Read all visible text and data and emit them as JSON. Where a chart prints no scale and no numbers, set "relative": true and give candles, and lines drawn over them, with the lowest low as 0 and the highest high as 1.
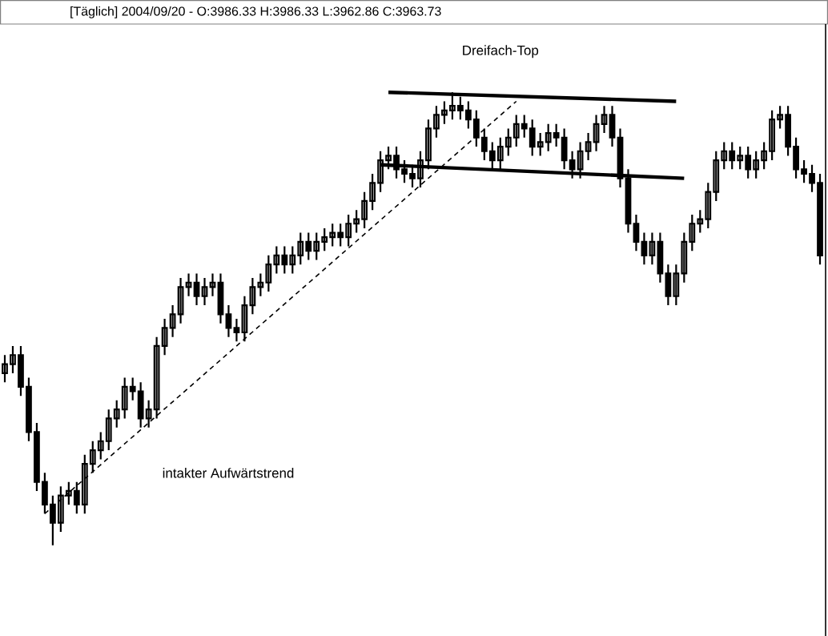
{
  "chart_data": {
    "type": "candlestick",
    "relative": true,
    "title": "[Täglich] 2004/09/20 - O:3986.33 H:3986.33 L:3962.86 C:3963.73",
    "annotations": [
      "Dreifach-Top",
      "intakter Aufwärtstrend"
    ],
    "color": "#000000",
    "categories": [
      null,
      null,
      null,
      null,
      null,
      null,
      null,
      null,
      null,
      null,
      null,
      null,
      null,
      null,
      null,
      null,
      null,
      null,
      null,
      null,
      null,
      null,
      null,
      null,
      null,
      null,
      null,
      null,
      null,
      null,
      null,
      null,
      null,
      null,
      null,
      null,
      null,
      null,
      null,
      null,
      null,
      null,
      null,
      null,
      null,
      null,
      null,
      null,
      null,
      null,
      null,
      null,
      null,
      null,
      null,
      null,
      null,
      null,
      null,
      null,
      null,
      null,
      null,
      null,
      null,
      null,
      null,
      null,
      null,
      null,
      null,
      null,
      null,
      null,
      null,
      null,
      null,
      null,
      null,
      null,
      null,
      null,
      null,
      null,
      null,
      null,
      null,
      null,
      null,
      null,
      null,
      null,
      null,
      null,
      null,
      null,
      null,
      null,
      null,
      null,
      null,
      null,
      null
    ],
    "ohlc": [
      [
        0.38,
        0.42,
        0.36,
        0.4
      ],
      [
        0.4,
        0.44,
        0.38,
        0.42
      ],
      [
        0.42,
        0.44,
        0.33,
        0.35
      ],
      [
        0.35,
        0.37,
        0.23,
        0.25
      ],
      [
        0.25,
        0.27,
        0.12,
        0.14
      ],
      [
        0.14,
        0.16,
        0.07,
        0.09
      ],
      [
        0.09,
        0.11,
        0,
        0.05
      ],
      [
        0.05,
        0.13,
        0.03,
        0.11
      ],
      [
        0.11,
        0.14,
        0.09,
        0.12
      ],
      [
        0.12,
        0.14,
        0.07,
        0.09
      ],
      [
        0.09,
        0.2,
        0.07,
        0.18
      ],
      [
        0.18,
        0.23,
        0.16,
        0.21
      ],
      [
        0.21,
        0.25,
        0.19,
        0.23
      ],
      [
        0.23,
        0.3,
        0.21,
        0.28
      ],
      [
        0.28,
        0.32,
        0.26,
        0.3
      ],
      [
        0.3,
        0.37,
        0.28,
        0.35
      ],
      [
        0.35,
        0.37,
        0.32,
        0.34
      ],
      [
        0.34,
        0.36,
        0.26,
        0.28
      ],
      [
        0.28,
        0.32,
        0.26,
        0.3
      ],
      [
        0.3,
        0.46,
        0.28,
        0.44
      ],
      [
        0.44,
        0.5,
        0.42,
        0.48
      ],
      [
        0.48,
        0.53,
        0.46,
        0.51
      ],
      [
        0.51,
        0.59,
        0.49,
        0.57
      ],
      [
        0.57,
        0.6,
        0.55,
        0.58
      ],
      [
        0.58,
        0.6,
        0.53,
        0.55
      ],
      [
        0.55,
        0.59,
        0.53,
        0.57
      ],
      [
        0.57,
        0.6,
        0.55,
        0.58
      ],
      [
        0.58,
        0.6,
        0.49,
        0.51
      ],
      [
        0.51,
        0.53,
        0.46,
        0.48
      ],
      [
        0.48,
        0.5,
        0.45,
        0.47
      ],
      [
        0.47,
        0.55,
        0.45,
        0.53
      ],
      [
        0.53,
        0.59,
        0.51,
        0.57
      ],
      [
        0.57,
        0.6,
        0.55,
        0.58
      ],
      [
        0.58,
        0.64,
        0.56,
        0.62
      ],
      [
        0.62,
        0.66,
        0.6,
        0.64
      ],
      [
        0.64,
        0.66,
        0.6,
        0.62
      ],
      [
        0.62,
        0.66,
        0.6,
        0.64
      ],
      [
        0.64,
        0.69,
        0.62,
        0.67
      ],
      [
        0.67,
        0.69,
        0.63,
        0.65
      ],
      [
        0.65,
        0.69,
        0.63,
        0.67
      ],
      [
        0.67,
        0.7,
        0.65,
        0.68
      ],
      [
        0.68,
        0.71,
        0.66,
        0.69
      ],
      [
        0.69,
        0.71,
        0.66,
        0.68
      ],
      [
        0.68,
        0.73,
        0.66,
        0.71
      ],
      [
        0.71,
        0.74,
        0.69,
        0.72
      ],
      [
        0.72,
        0.78,
        0.7,
        0.76
      ],
      [
        0.76,
        0.82,
        0.74,
        0.8
      ],
      [
        0.8,
        0.87,
        0.78,
        0.85
      ],
      [
        0.85,
        0.88,
        0.83,
        0.86
      ],
      [
        0.86,
        0.88,
        0.81,
        0.83
      ],
      [
        0.83,
        0.85,
        0.8,
        0.82
      ],
      [
        0.82,
        0.84,
        0.79,
        0.81
      ],
      [
        0.81,
        0.87,
        0.79,
        0.85
      ],
      [
        0.85,
        0.94,
        0.83,
        0.92
      ],
      [
        0.92,
        0.97,
        0.9,
        0.95
      ],
      [
        0.95,
        0.98,
        0.93,
        0.96
      ],
      [
        0.96,
        1,
        0.94,
        0.97
      ],
      [
        0.97,
        0.99,
        0.94,
        0.96
      ],
      [
        0.96,
        0.98,
        0.92,
        0.94
      ],
      [
        0.94,
        0.96,
        0.88,
        0.9
      ],
      [
        0.9,
        0.92,
        0.85,
        0.87
      ],
      [
        0.87,
        0.89,
        0.83,
        0.85
      ],
      [
        0.85,
        0.9,
        0.83,
        0.88
      ],
      [
        0.88,
        0.92,
        0.86,
        0.9
      ],
      [
        0.9,
        0.95,
        0.88,
        0.93
      ],
      [
        0.93,
        0.95,
        0.9,
        0.92
      ],
      [
        0.92,
        0.94,
        0.86,
        0.88
      ],
      [
        0.88,
        0.91,
        0.86,
        0.89
      ],
      [
        0.89,
        0.93,
        0.87,
        0.91
      ],
      [
        0.91,
        0.93,
        0.88,
        0.9
      ],
      [
        0.9,
        0.92,
        0.83,
        0.85
      ],
      [
        0.85,
        0.87,
        0.81,
        0.83
      ],
      [
        0.83,
        0.89,
        0.81,
        0.87
      ],
      [
        0.87,
        0.91,
        0.85,
        0.89
      ],
      [
        0.89,
        0.95,
        0.87,
        0.93
      ],
      [
        0.93,
        0.97,
        0.91,
        0.95
      ],
      [
        0.95,
        0.97,
        0.88,
        0.9
      ],
      [
        0.9,
        0.92,
        0.79,
        0.81
      ],
      [
        0.81,
        0.83,
        0.69,
        0.71
      ],
      [
        0.71,
        0.73,
        0.65,
        0.67
      ],
      [
        0.67,
        0.69,
        0.62,
        0.64
      ],
      [
        0.64,
        0.69,
        0.62,
        0.67
      ],
      [
        0.67,
        0.69,
        0.58,
        0.6
      ],
      [
        0.6,
        0.62,
        0.53,
        0.55
      ],
      [
        0.55,
        0.62,
        0.53,
        0.6
      ],
      [
        0.6,
        0.69,
        0.58,
        0.67
      ],
      [
        0.67,
        0.73,
        0.65,
        0.71
      ],
      [
        0.71,
        0.74,
        0.69,
        0.72
      ],
      [
        0.72,
        0.8,
        0.7,
        0.78
      ],
      [
        0.78,
        0.87,
        0.76,
        0.85
      ],
      [
        0.85,
        0.89,
        0.83,
        0.87
      ],
      [
        0.87,
        0.89,
        0.83,
        0.85
      ],
      [
        0.85,
        0.88,
        0.83,
        0.86
      ],
      [
        0.86,
        0.88,
        0.81,
        0.83
      ],
      [
        0.83,
        0.87,
        0.81,
        0.85
      ],
      [
        0.85,
        0.89,
        0.83,
        0.87
      ],
      [
        0.87,
        0.96,
        0.85,
        0.94
      ],
      [
        0.94,
        0.97,
        0.92,
        0.95
      ],
      [
        0.95,
        0.97,
        0.86,
        0.88
      ],
      [
        0.88,
        0.9,
        0.81,
        0.83
      ],
      [
        0.83,
        0.85,
        0.8,
        0.82
      ],
      [
        0.82,
        0.84,
        0.78,
        0.8
      ],
      [
        0.8,
        0.82,
        0.62,
        0.64
      ]
    ],
    "series": [
      {
        "type": "line",
        "values": [
          null,
          null,
          null,
          null,
          null,
          null,
          null,
          null,
          null,
          null,
          null,
          null,
          null,
          null,
          null,
          null,
          null,
          null,
          null,
          null,
          null,
          null,
          null,
          null,
          null,
          null,
          null,
          null,
          null,
          null,
          null,
          null,
          null,
          null,
          null,
          null,
          null,
          null,
          null,
          null,
          null,
          null,
          null,
          null,
          null,
          null,
          null,
          null,
          1.0,
          null,
          null,
          null,
          null,
          null,
          null,
          null,
          null,
          null,
          null,
          null,
          null,
          null,
          null,
          null,
          null,
          null,
          null,
          null,
          null,
          null,
          null,
          null,
          null,
          null,
          null,
          null,
          null,
          null,
          null,
          null,
          null,
          null,
          null,
          null,
          0.98,
          null,
          null,
          null,
          null,
          null,
          null,
          null,
          null,
          null,
          null,
          null,
          null,
          null,
          null,
          null,
          null,
          null,
          null
        ],
        "color": "#000000",
        "line_style": "solid"
      },
      {
        "type": "line",
        "values": [
          null,
          null,
          null,
          null,
          null,
          null,
          null,
          null,
          null,
          null,
          null,
          null,
          null,
          null,
          null,
          null,
          null,
          null,
          null,
          null,
          null,
          null,
          null,
          null,
          null,
          null,
          null,
          null,
          null,
          null,
          null,
          null,
          null,
          null,
          null,
          null,
          null,
          null,
          null,
          null,
          null,
          null,
          null,
          null,
          null,
          null,
          null,
          0.84,
          null,
          null,
          null,
          null,
          null,
          null,
          null,
          null,
          null,
          null,
          null,
          null,
          null,
          null,
          null,
          null,
          null,
          null,
          null,
          null,
          null,
          null,
          null,
          null,
          null,
          null,
          null,
          null,
          null,
          null,
          null,
          null,
          null,
          null,
          null,
          null,
          null,
          0.81,
          null,
          null,
          null,
          null,
          null,
          null,
          null,
          null,
          null,
          null,
          null,
          null,
          null,
          null,
          null,
          null,
          null
        ],
        "color": "#000000",
        "line_style": "solid"
      },
      {
        "type": "line",
        "values": [
          null,
          null,
          null,
          null,
          null,
          0.07,
          null,
          null,
          null,
          null,
          null,
          null,
          null,
          null,
          null,
          null,
          null,
          null,
          null,
          null,
          null,
          null,
          null,
          null,
          null,
          null,
          null,
          null,
          null,
          null,
          null,
          null,
          null,
          null,
          null,
          null,
          null,
          null,
          null,
          null,
          null,
          null,
          null,
          null,
          null,
          null,
          null,
          null,
          null,
          null,
          null,
          null,
          null,
          null,
          null,
          null,
          null,
          null,
          null,
          null,
          null,
          null,
          null,
          null,
          0.98,
          null,
          null,
          null,
          null,
          null,
          null,
          null,
          null,
          null,
          null,
          null,
          null,
          null,
          null,
          null,
          null,
          null,
          null,
          null,
          null,
          null,
          null,
          null,
          null,
          null,
          null,
          null,
          null,
          null,
          null,
          null,
          null,
          null,
          null,
          null,
          null,
          null,
          null
        ],
        "color": "#000000",
        "line_style": "dashed"
      }
    ]
  }
}
